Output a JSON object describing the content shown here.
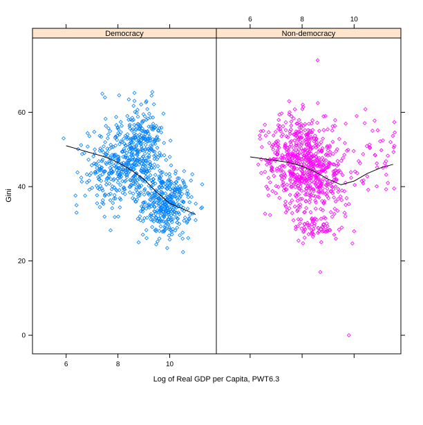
{
  "chart_data": {
    "type": "scatter",
    "title": "",
    "xlabel": "Log of Real GDP per Capita, PWT6.3",
    "ylabel": "Gini",
    "xlim": [
      4.7,
      11.8
    ],
    "ylim": [
      -5,
      80
    ],
    "x_ticks": [
      6,
      8,
      10
    ],
    "y_ticks": [
      0,
      20,
      40,
      60
    ],
    "grid": false,
    "strip_color": "#ffe5cc",
    "panels": [
      {
        "name": "Democracy",
        "color": "#0080ff",
        "clusters": [
          {
            "cx": 8.5,
            "cy": 47,
            "sx": 0.65,
            "sy": 6.5,
            "n": 420
          },
          {
            "cx": 9.9,
            "cy": 35,
            "sx": 0.45,
            "sy": 4.2,
            "n": 330
          },
          {
            "cx": 9.0,
            "cy": 52,
            "sx": 0.35,
            "sy": 5.5,
            "n": 90
          },
          {
            "cx": 7.3,
            "cy": 44,
            "sx": 0.45,
            "sy": 6.0,
            "n": 70
          }
        ],
        "outliers": [
          [
            7.4,
            65
          ],
          [
            7.5,
            64
          ],
          [
            9.1,
            63
          ],
          [
            6.4,
            35
          ],
          [
            6.4,
            33
          ],
          [
            8.8,
            25
          ],
          [
            9.6,
            26
          ],
          [
            10.5,
            26
          ],
          [
            11.0,
            31
          ],
          [
            5.9,
            53
          ],
          [
            6.7,
            49
          ]
        ],
        "smooth": [
          [
            6.0,
            51
          ],
          [
            6.5,
            50
          ],
          [
            7.0,
            49
          ],
          [
            7.5,
            48
          ],
          [
            8.0,
            46.5
          ],
          [
            8.5,
            44.5
          ],
          [
            9.0,
            42
          ],
          [
            9.5,
            38.5
          ],
          [
            10.0,
            35.5
          ],
          [
            10.5,
            34
          ],
          [
            11.0,
            32.5
          ]
        ]
      },
      {
        "name": "Non-democracy",
        "color": "#ff00ff",
        "clusters": [
          {
            "cx": 7.9,
            "cy": 47,
            "sx": 0.65,
            "sy": 6.0,
            "n": 520
          },
          {
            "cx": 9.0,
            "cy": 42,
            "sx": 0.45,
            "sy": 6.0,
            "n": 160
          },
          {
            "cx": 8.5,
            "cy": 29,
            "sx": 0.4,
            "sy": 1.6,
            "n": 60
          },
          {
            "cx": 10.9,
            "cy": 49,
            "sx": 0.5,
            "sy": 5.0,
            "n": 45
          }
        ],
        "outliers": [
          [
            8.6,
            74
          ],
          [
            8.7,
            17
          ],
          [
            9.8,
            0
          ],
          [
            7.5,
            63
          ],
          [
            6.5,
            55
          ],
          [
            9.3,
            26
          ],
          [
            10.1,
            59
          ],
          [
            11.4,
            52
          ],
          [
            11.3,
            41
          ],
          [
            8.9,
            59
          ],
          [
            10.0,
            28
          ]
        ],
        "smooth": [
          [
            6.0,
            48
          ],
          [
            6.5,
            47.5
          ],
          [
            7.0,
            47
          ],
          [
            7.5,
            46.5
          ],
          [
            8.0,
            45.5
          ],
          [
            8.5,
            44
          ],
          [
            9.0,
            42
          ],
          [
            9.5,
            40.5
          ],
          [
            10.0,
            41.5
          ],
          [
            10.5,
            43.5
          ],
          [
            11.0,
            45
          ],
          [
            11.5,
            46
          ]
        ]
      }
    ]
  }
}
